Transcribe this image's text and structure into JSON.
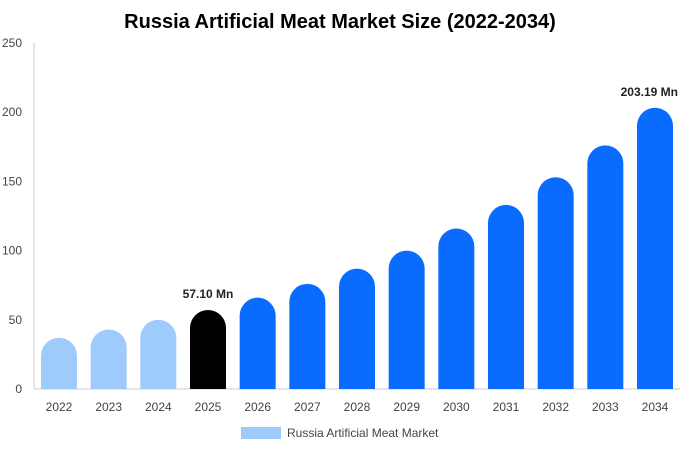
{
  "chart_data": {
    "type": "bar",
    "title": "Russia Artificial Meat Market Size (2022-2034)",
    "xlabel": "",
    "ylabel": "",
    "categories": [
      "2022",
      "2023",
      "2024",
      "2025",
      "2026",
      "2027",
      "2028",
      "2029",
      "2030",
      "2031",
      "2032",
      "2033",
      "2034"
    ],
    "series": [
      {
        "name": "Russia Artificial Meat Market",
        "values": [
          37,
          43,
          50,
          57.1,
          66,
          76,
          87,
          100,
          116,
          133,
          153,
          176,
          203.19
        ]
      }
    ],
    "ylim": [
      0,
      250
    ],
    "yticks": [
      0,
      50,
      100,
      150,
      200,
      250
    ],
    "annotations": [
      {
        "category": "2025",
        "text": "57.10 Mn"
      },
      {
        "category": "2034",
        "text": "203.19 Mn"
      }
    ],
    "colors": {
      "historical": "#9ecbfc",
      "base_year": "#000000",
      "forecast": "#0a6cff",
      "axis": "#cccccc"
    },
    "grid": false,
    "legend": "bottom-center"
  }
}
